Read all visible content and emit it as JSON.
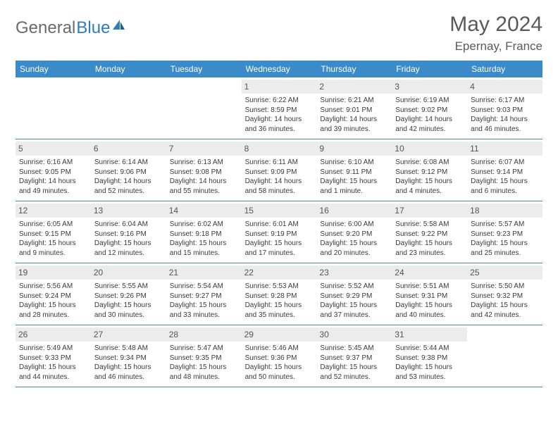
{
  "brand": {
    "part1": "General",
    "part2": "Blue"
  },
  "title": "May 2024",
  "location": "Epernay, France",
  "colors": {
    "header_bg": "#3b8bc8",
    "header_text": "#ffffff",
    "daynum_bg": "#ececec",
    "border": "#3b8bc8",
    "text": "#3a3a3a",
    "brand_gray": "#6a6a6a",
    "brand_blue": "#2f7bbf"
  },
  "weekdays": [
    "Sunday",
    "Monday",
    "Tuesday",
    "Wednesday",
    "Thursday",
    "Friday",
    "Saturday"
  ],
  "rows": [
    [
      null,
      null,
      null,
      {
        "n": "1",
        "sr": "6:22 AM",
        "ss": "8:59 PM",
        "d1": "Daylight: 14 hours",
        "d2": "and 36 minutes."
      },
      {
        "n": "2",
        "sr": "6:21 AM",
        "ss": "9:01 PM",
        "d1": "Daylight: 14 hours",
        "d2": "and 39 minutes."
      },
      {
        "n": "3",
        "sr": "6:19 AM",
        "ss": "9:02 PM",
        "d1": "Daylight: 14 hours",
        "d2": "and 42 minutes."
      },
      {
        "n": "4",
        "sr": "6:17 AM",
        "ss": "9:03 PM",
        "d1": "Daylight: 14 hours",
        "d2": "and 46 minutes."
      }
    ],
    [
      {
        "n": "5",
        "sr": "6:16 AM",
        "ss": "9:05 PM",
        "d1": "Daylight: 14 hours",
        "d2": "and 49 minutes."
      },
      {
        "n": "6",
        "sr": "6:14 AM",
        "ss": "9:06 PM",
        "d1": "Daylight: 14 hours",
        "d2": "and 52 minutes."
      },
      {
        "n": "7",
        "sr": "6:13 AM",
        "ss": "9:08 PM",
        "d1": "Daylight: 14 hours",
        "d2": "and 55 minutes."
      },
      {
        "n": "8",
        "sr": "6:11 AM",
        "ss": "9:09 PM",
        "d1": "Daylight: 14 hours",
        "d2": "and 58 minutes."
      },
      {
        "n": "9",
        "sr": "6:10 AM",
        "ss": "9:11 PM",
        "d1": "Daylight: 15 hours",
        "d2": "and 1 minute."
      },
      {
        "n": "10",
        "sr": "6:08 AM",
        "ss": "9:12 PM",
        "d1": "Daylight: 15 hours",
        "d2": "and 4 minutes."
      },
      {
        "n": "11",
        "sr": "6:07 AM",
        "ss": "9:14 PM",
        "d1": "Daylight: 15 hours",
        "d2": "and 6 minutes."
      }
    ],
    [
      {
        "n": "12",
        "sr": "6:05 AM",
        "ss": "9:15 PM",
        "d1": "Daylight: 15 hours",
        "d2": "and 9 minutes."
      },
      {
        "n": "13",
        "sr": "6:04 AM",
        "ss": "9:16 PM",
        "d1": "Daylight: 15 hours",
        "d2": "and 12 minutes."
      },
      {
        "n": "14",
        "sr": "6:02 AM",
        "ss": "9:18 PM",
        "d1": "Daylight: 15 hours",
        "d2": "and 15 minutes."
      },
      {
        "n": "15",
        "sr": "6:01 AM",
        "ss": "9:19 PM",
        "d1": "Daylight: 15 hours",
        "d2": "and 17 minutes."
      },
      {
        "n": "16",
        "sr": "6:00 AM",
        "ss": "9:20 PM",
        "d1": "Daylight: 15 hours",
        "d2": "and 20 minutes."
      },
      {
        "n": "17",
        "sr": "5:58 AM",
        "ss": "9:22 PM",
        "d1": "Daylight: 15 hours",
        "d2": "and 23 minutes."
      },
      {
        "n": "18",
        "sr": "5:57 AM",
        "ss": "9:23 PM",
        "d1": "Daylight: 15 hours",
        "d2": "and 25 minutes."
      }
    ],
    [
      {
        "n": "19",
        "sr": "5:56 AM",
        "ss": "9:24 PM",
        "d1": "Daylight: 15 hours",
        "d2": "and 28 minutes."
      },
      {
        "n": "20",
        "sr": "5:55 AM",
        "ss": "9:26 PM",
        "d1": "Daylight: 15 hours",
        "d2": "and 30 minutes."
      },
      {
        "n": "21",
        "sr": "5:54 AM",
        "ss": "9:27 PM",
        "d1": "Daylight: 15 hours",
        "d2": "and 33 minutes."
      },
      {
        "n": "22",
        "sr": "5:53 AM",
        "ss": "9:28 PM",
        "d1": "Daylight: 15 hours",
        "d2": "and 35 minutes."
      },
      {
        "n": "23",
        "sr": "5:52 AM",
        "ss": "9:29 PM",
        "d1": "Daylight: 15 hours",
        "d2": "and 37 minutes."
      },
      {
        "n": "24",
        "sr": "5:51 AM",
        "ss": "9:31 PM",
        "d1": "Daylight: 15 hours",
        "d2": "and 40 minutes."
      },
      {
        "n": "25",
        "sr": "5:50 AM",
        "ss": "9:32 PM",
        "d1": "Daylight: 15 hours",
        "d2": "and 42 minutes."
      }
    ],
    [
      {
        "n": "26",
        "sr": "5:49 AM",
        "ss": "9:33 PM",
        "d1": "Daylight: 15 hours",
        "d2": "and 44 minutes."
      },
      {
        "n": "27",
        "sr": "5:48 AM",
        "ss": "9:34 PM",
        "d1": "Daylight: 15 hours",
        "d2": "and 46 minutes."
      },
      {
        "n": "28",
        "sr": "5:47 AM",
        "ss": "9:35 PM",
        "d1": "Daylight: 15 hours",
        "d2": "and 48 minutes."
      },
      {
        "n": "29",
        "sr": "5:46 AM",
        "ss": "9:36 PM",
        "d1": "Daylight: 15 hours",
        "d2": "and 50 minutes."
      },
      {
        "n": "30",
        "sr": "5:45 AM",
        "ss": "9:37 PM",
        "d1": "Daylight: 15 hours",
        "d2": "and 52 minutes."
      },
      {
        "n": "31",
        "sr": "5:44 AM",
        "ss": "9:38 PM",
        "d1": "Daylight: 15 hours",
        "d2": "and 53 minutes."
      },
      null
    ]
  ]
}
